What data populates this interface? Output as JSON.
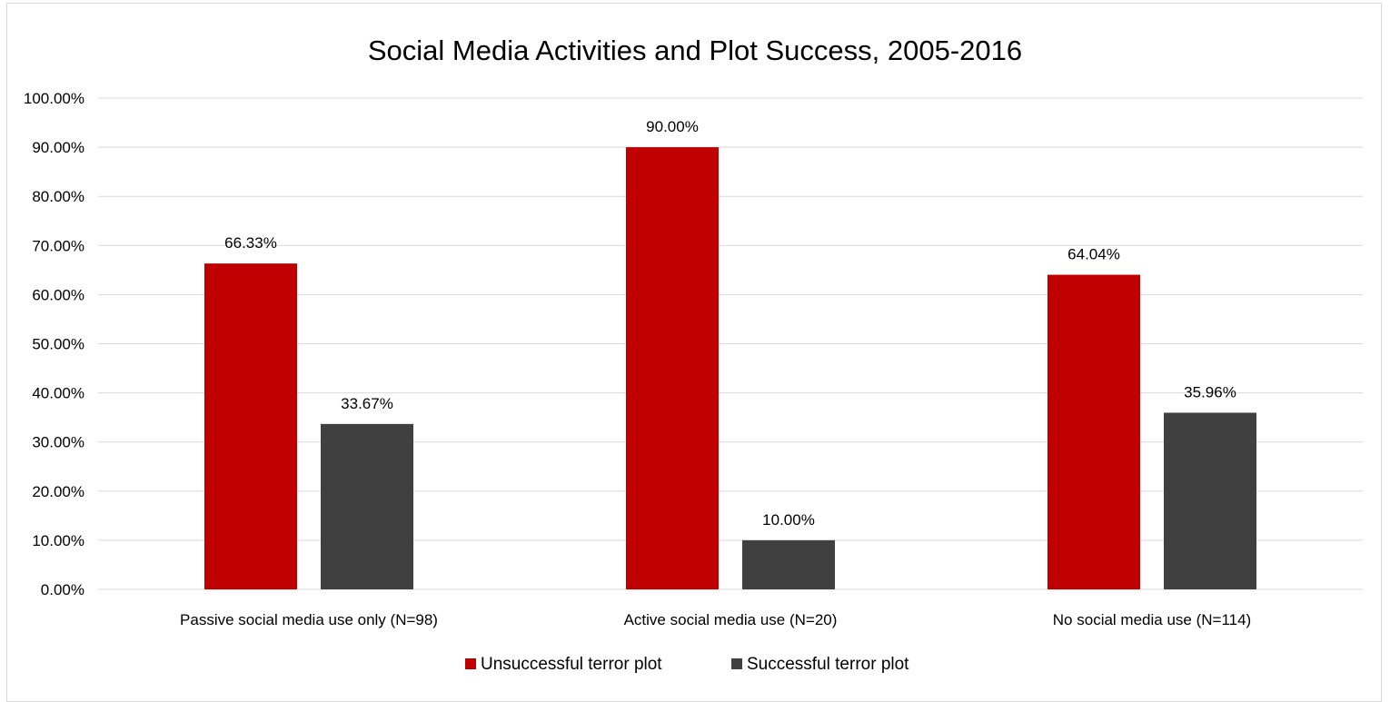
{
  "chart_data": {
    "type": "bar",
    "title": "Social Media Activities and Plot Success, 2005-2016",
    "categories": [
      "Passive social media use only (N=98)",
      "Active social media use (N=20)",
      "No social media use (N=114)"
    ],
    "series": [
      {
        "name": "Unsuccessful terror plot",
        "values": [
          66.33,
          90.0,
          64.04
        ],
        "labels": [
          "66.33%",
          "90.00%",
          "64.04%"
        ],
        "color": "#c00000"
      },
      {
        "name": "Successful terror plot",
        "values": [
          33.67,
          10.0,
          35.96
        ],
        "labels": [
          "33.67%",
          "10.00%",
          "35.96%"
        ],
        "color": "#404040"
      }
    ],
    "ylim": [
      0,
      100
    ],
    "yticks": [
      "0.00%",
      "10.00%",
      "20.00%",
      "30.00%",
      "40.00%",
      "50.00%",
      "60.00%",
      "70.00%",
      "80.00%",
      "90.00%",
      "100.00%"
    ],
    "grid": true,
    "legend_position": "bottom"
  }
}
